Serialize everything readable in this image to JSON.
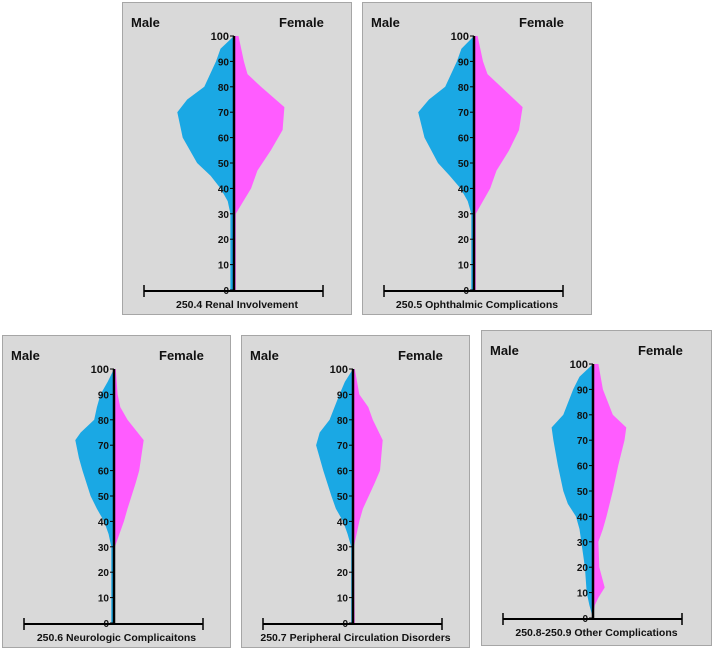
{
  "colors": {
    "male": "#1aa8e4",
    "female": "#ff5cff",
    "background": "#d9d9d9",
    "axis": "#000000"
  },
  "chart_data": [
    {
      "type": "area",
      "title": "250.4 Renal Involvement",
      "left_label": "Male",
      "right_label": "Female",
      "y_ticks": [
        "0",
        "10",
        "20",
        "30",
        "40",
        "50",
        "60",
        "70",
        "80",
        "90",
        "100"
      ],
      "ylim": [
        0,
        100
      ],
      "series": [
        {
          "name": "Male",
          "points": [
            [
              0,
              0.04
            ],
            [
              20,
              0.04
            ],
            [
              30,
              0.04
            ],
            [
              35,
              0.07
            ],
            [
              40,
              0.15
            ],
            [
              45,
              0.26
            ],
            [
              50,
              0.41
            ],
            [
              60,
              0.57
            ],
            [
              70,
              0.63
            ],
            [
              75,
              0.52
            ],
            [
              80,
              0.33
            ],
            [
              90,
              0.2
            ],
            [
              95,
              0.15
            ],
            [
              100,
              0
            ]
          ]
        },
        {
          "name": "Female",
          "points": [
            [
              0,
              0.02
            ],
            [
              20,
              0.02
            ],
            [
              30,
              0.02
            ],
            [
              40,
              0.19
            ],
            [
              47,
              0.26
            ],
            [
              55,
              0.41
            ],
            [
              63,
              0.54
            ],
            [
              72,
              0.56
            ],
            [
              80,
              0.3
            ],
            [
              85,
              0.15
            ],
            [
              90,
              0.11
            ],
            [
              100,
              0.05
            ]
          ]
        }
      ]
    },
    {
      "type": "area",
      "title": "250.5 Ophthalmic Complications",
      "left_label": "Male",
      "right_label": "Female",
      "y_ticks": [
        "0",
        "10",
        "20",
        "30",
        "40",
        "50",
        "60",
        "70",
        "80",
        "90",
        "100"
      ],
      "ylim": [
        0,
        100
      ],
      "series": [
        {
          "name": "Male",
          "points": [
            [
              0,
              0.03
            ],
            [
              20,
              0.03
            ],
            [
              30,
              0.03
            ],
            [
              35,
              0.07
            ],
            [
              40,
              0.15
            ],
            [
              45,
              0.27
            ],
            [
              50,
              0.4
            ],
            [
              60,
              0.55
            ],
            [
              70,
              0.62
            ],
            [
              75,
              0.5
            ],
            [
              80,
              0.32
            ],
            [
              90,
              0.19
            ],
            [
              95,
              0.14
            ],
            [
              100,
              0
            ]
          ]
        },
        {
          "name": "Female",
          "points": [
            [
              0,
              0.02
            ],
            [
              20,
              0.02
            ],
            [
              30,
              0.02
            ],
            [
              40,
              0.18
            ],
            [
              47,
              0.25
            ],
            [
              55,
              0.39
            ],
            [
              63,
              0.5
            ],
            [
              72,
              0.54
            ],
            [
              80,
              0.3
            ],
            [
              85,
              0.15
            ],
            [
              90,
              0.1
            ],
            [
              100,
              0.04
            ]
          ]
        }
      ]
    },
    {
      "type": "area",
      "title": "250.6 Neurologic Complicaitons",
      "left_label": "Male",
      "right_label": "Female",
      "y_ticks": [
        "0",
        "10",
        "20",
        "30",
        "40",
        "50",
        "60",
        "70",
        "80",
        "90",
        "100"
      ],
      "ylim": [
        0,
        100
      ],
      "series": [
        {
          "name": "Male",
          "points": [
            [
              0,
              0.03
            ],
            [
              30,
              0.03
            ],
            [
              35,
              0.06
            ],
            [
              40,
              0.11
            ],
            [
              45,
              0.19
            ],
            [
              50,
              0.26
            ],
            [
              60,
              0.35
            ],
            [
              65,
              0.39
            ],
            [
              72,
              0.43
            ],
            [
              75,
              0.37
            ],
            [
              80,
              0.22
            ],
            [
              85,
              0.19
            ],
            [
              90,
              0.15
            ],
            [
              95,
              0.07
            ],
            [
              100,
              0
            ]
          ]
        },
        {
          "name": "Female",
          "points": [
            [
              0,
              0.01
            ],
            [
              30,
              0.01
            ],
            [
              40,
              0.11
            ],
            [
              45,
              0.15
            ],
            [
              55,
              0.24
            ],
            [
              60,
              0.28
            ],
            [
              72,
              0.33
            ],
            [
              80,
              0.15
            ],
            [
              85,
              0.07
            ],
            [
              90,
              0.04
            ],
            [
              100,
              0.02
            ]
          ]
        }
      ]
    },
    {
      "type": "area",
      "title": "250.7 Peripheral Circulation Disorders",
      "left_label": "Male",
      "right_label": "Female",
      "y_ticks": [
        "0",
        "10",
        "20",
        "30",
        "40",
        "50",
        "60",
        "70",
        "80",
        "90",
        "100"
      ],
      "ylim": [
        0,
        100
      ],
      "series": [
        {
          "name": "Male",
          "points": [
            [
              0,
              0.02
            ],
            [
              30,
              0.02
            ],
            [
              35,
              0.06
            ],
            [
              40,
              0.11
            ],
            [
              45,
              0.19
            ],
            [
              50,
              0.24
            ],
            [
              60,
              0.33
            ],
            [
              70,
              0.41
            ],
            [
              75,
              0.37
            ],
            [
              80,
              0.26
            ],
            [
              90,
              0.15
            ],
            [
              95,
              0.09
            ],
            [
              100,
              0
            ]
          ]
        },
        {
          "name": "Female",
          "points": [
            [
              0,
              0.02
            ],
            [
              30,
              0.01
            ],
            [
              40,
              0.07
            ],
            [
              45,
              0.11
            ],
            [
              55,
              0.24
            ],
            [
              60,
              0.3
            ],
            [
              72,
              0.33
            ],
            [
              80,
              0.22
            ],
            [
              85,
              0.17
            ],
            [
              90,
              0.07
            ],
            [
              100,
              0.02
            ]
          ]
        }
      ]
    },
    {
      "type": "area",
      "title": "250.8-250.9 Other Complications",
      "left_label": "Male",
      "right_label": "Female",
      "y_ticks": [
        "0",
        "10",
        "20",
        "30",
        "40",
        "50",
        "60",
        "70",
        "80",
        "90",
        "100"
      ],
      "ylim": [
        0,
        100
      ],
      "series": [
        {
          "name": "Male",
          "points": [
            [
              0,
              0
            ],
            [
              5,
              0.04
            ],
            [
              10,
              0.07
            ],
            [
              20,
              0.09
            ],
            [
              30,
              0.13
            ],
            [
              35,
              0.15
            ],
            [
              40,
              0.19
            ],
            [
              45,
              0.28
            ],
            [
              50,
              0.33
            ],
            [
              60,
              0.39
            ],
            [
              70,
              0.44
            ],
            [
              75,
              0.46
            ],
            [
              80,
              0.33
            ],
            [
              90,
              0.22
            ],
            [
              95,
              0.15
            ],
            [
              100,
              0
            ]
          ]
        },
        {
          "name": "Female",
          "points": [
            [
              0,
              0
            ],
            [
              5,
              0.02
            ],
            [
              8,
              0.06
            ],
            [
              12,
              0.13
            ],
            [
              20,
              0.07
            ],
            [
              30,
              0.06
            ],
            [
              35,
              0.11
            ],
            [
              40,
              0.15
            ],
            [
              50,
              0.22
            ],
            [
              60,
              0.28
            ],
            [
              70,
              0.35
            ],
            [
              75,
              0.37
            ],
            [
              80,
              0.22
            ],
            [
              90,
              0.11
            ],
            [
              100,
              0.06
            ]
          ]
        }
      ]
    }
  ]
}
